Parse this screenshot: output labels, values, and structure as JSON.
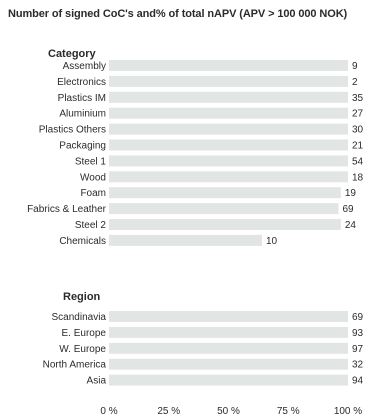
{
  "title": "Number of signed CoC's and% of total nAPV (APV > 100 000 NOK)",
  "chart_data": {
    "type": "bar",
    "orientation": "horizontal",
    "bar_color": "#e1e5e3",
    "x_ticks": [
      "0 %",
      "25 %",
      "50 %",
      "75 %",
      "100 %"
    ],
    "xlim": [
      0,
      100
    ],
    "groups": [
      {
        "name": "Category",
        "items": [
          {
            "label": "Assembly",
            "count": "9",
            "percent": 100
          },
          {
            "label": "Electronics",
            "count": "2",
            "percent": 100
          },
          {
            "label": "Plastics IM",
            "count": "35",
            "percent": 100
          },
          {
            "label": "Aluminium",
            "count": "27",
            "percent": 100
          },
          {
            "label": "Plastics Others",
            "count": "30",
            "percent": 100
          },
          {
            "label": "Packaging",
            "count": "21",
            "percent": 100
          },
          {
            "label": "Steel 1",
            "count": "54",
            "percent": 100
          },
          {
            "label": "Wood",
            "count": "18",
            "percent": 100
          },
          {
            "label": "Foam",
            "count": "19",
            "percent": 97
          },
          {
            "label": "Fabrics & Leather",
            "count": "69",
            "percent": 96
          },
          {
            "label": "Steel 2",
            "count": "24",
            "percent": 97
          },
          {
            "label": "Chemicals",
            "count": "10",
            "percent": 64
          }
        ]
      },
      {
        "name": "Region",
        "items": [
          {
            "label": "Scandinavia",
            "count": "69",
            "percent": 100
          },
          {
            "label": "E. Europe",
            "count": "93",
            "percent": 100
          },
          {
            "label": "W. Europe",
            "count": "97",
            "percent": 100
          },
          {
            "label": "North America",
            "count": "32",
            "percent": 100
          },
          {
            "label": "Asia",
            "count": "94",
            "percent": 100
          }
        ]
      }
    ]
  }
}
